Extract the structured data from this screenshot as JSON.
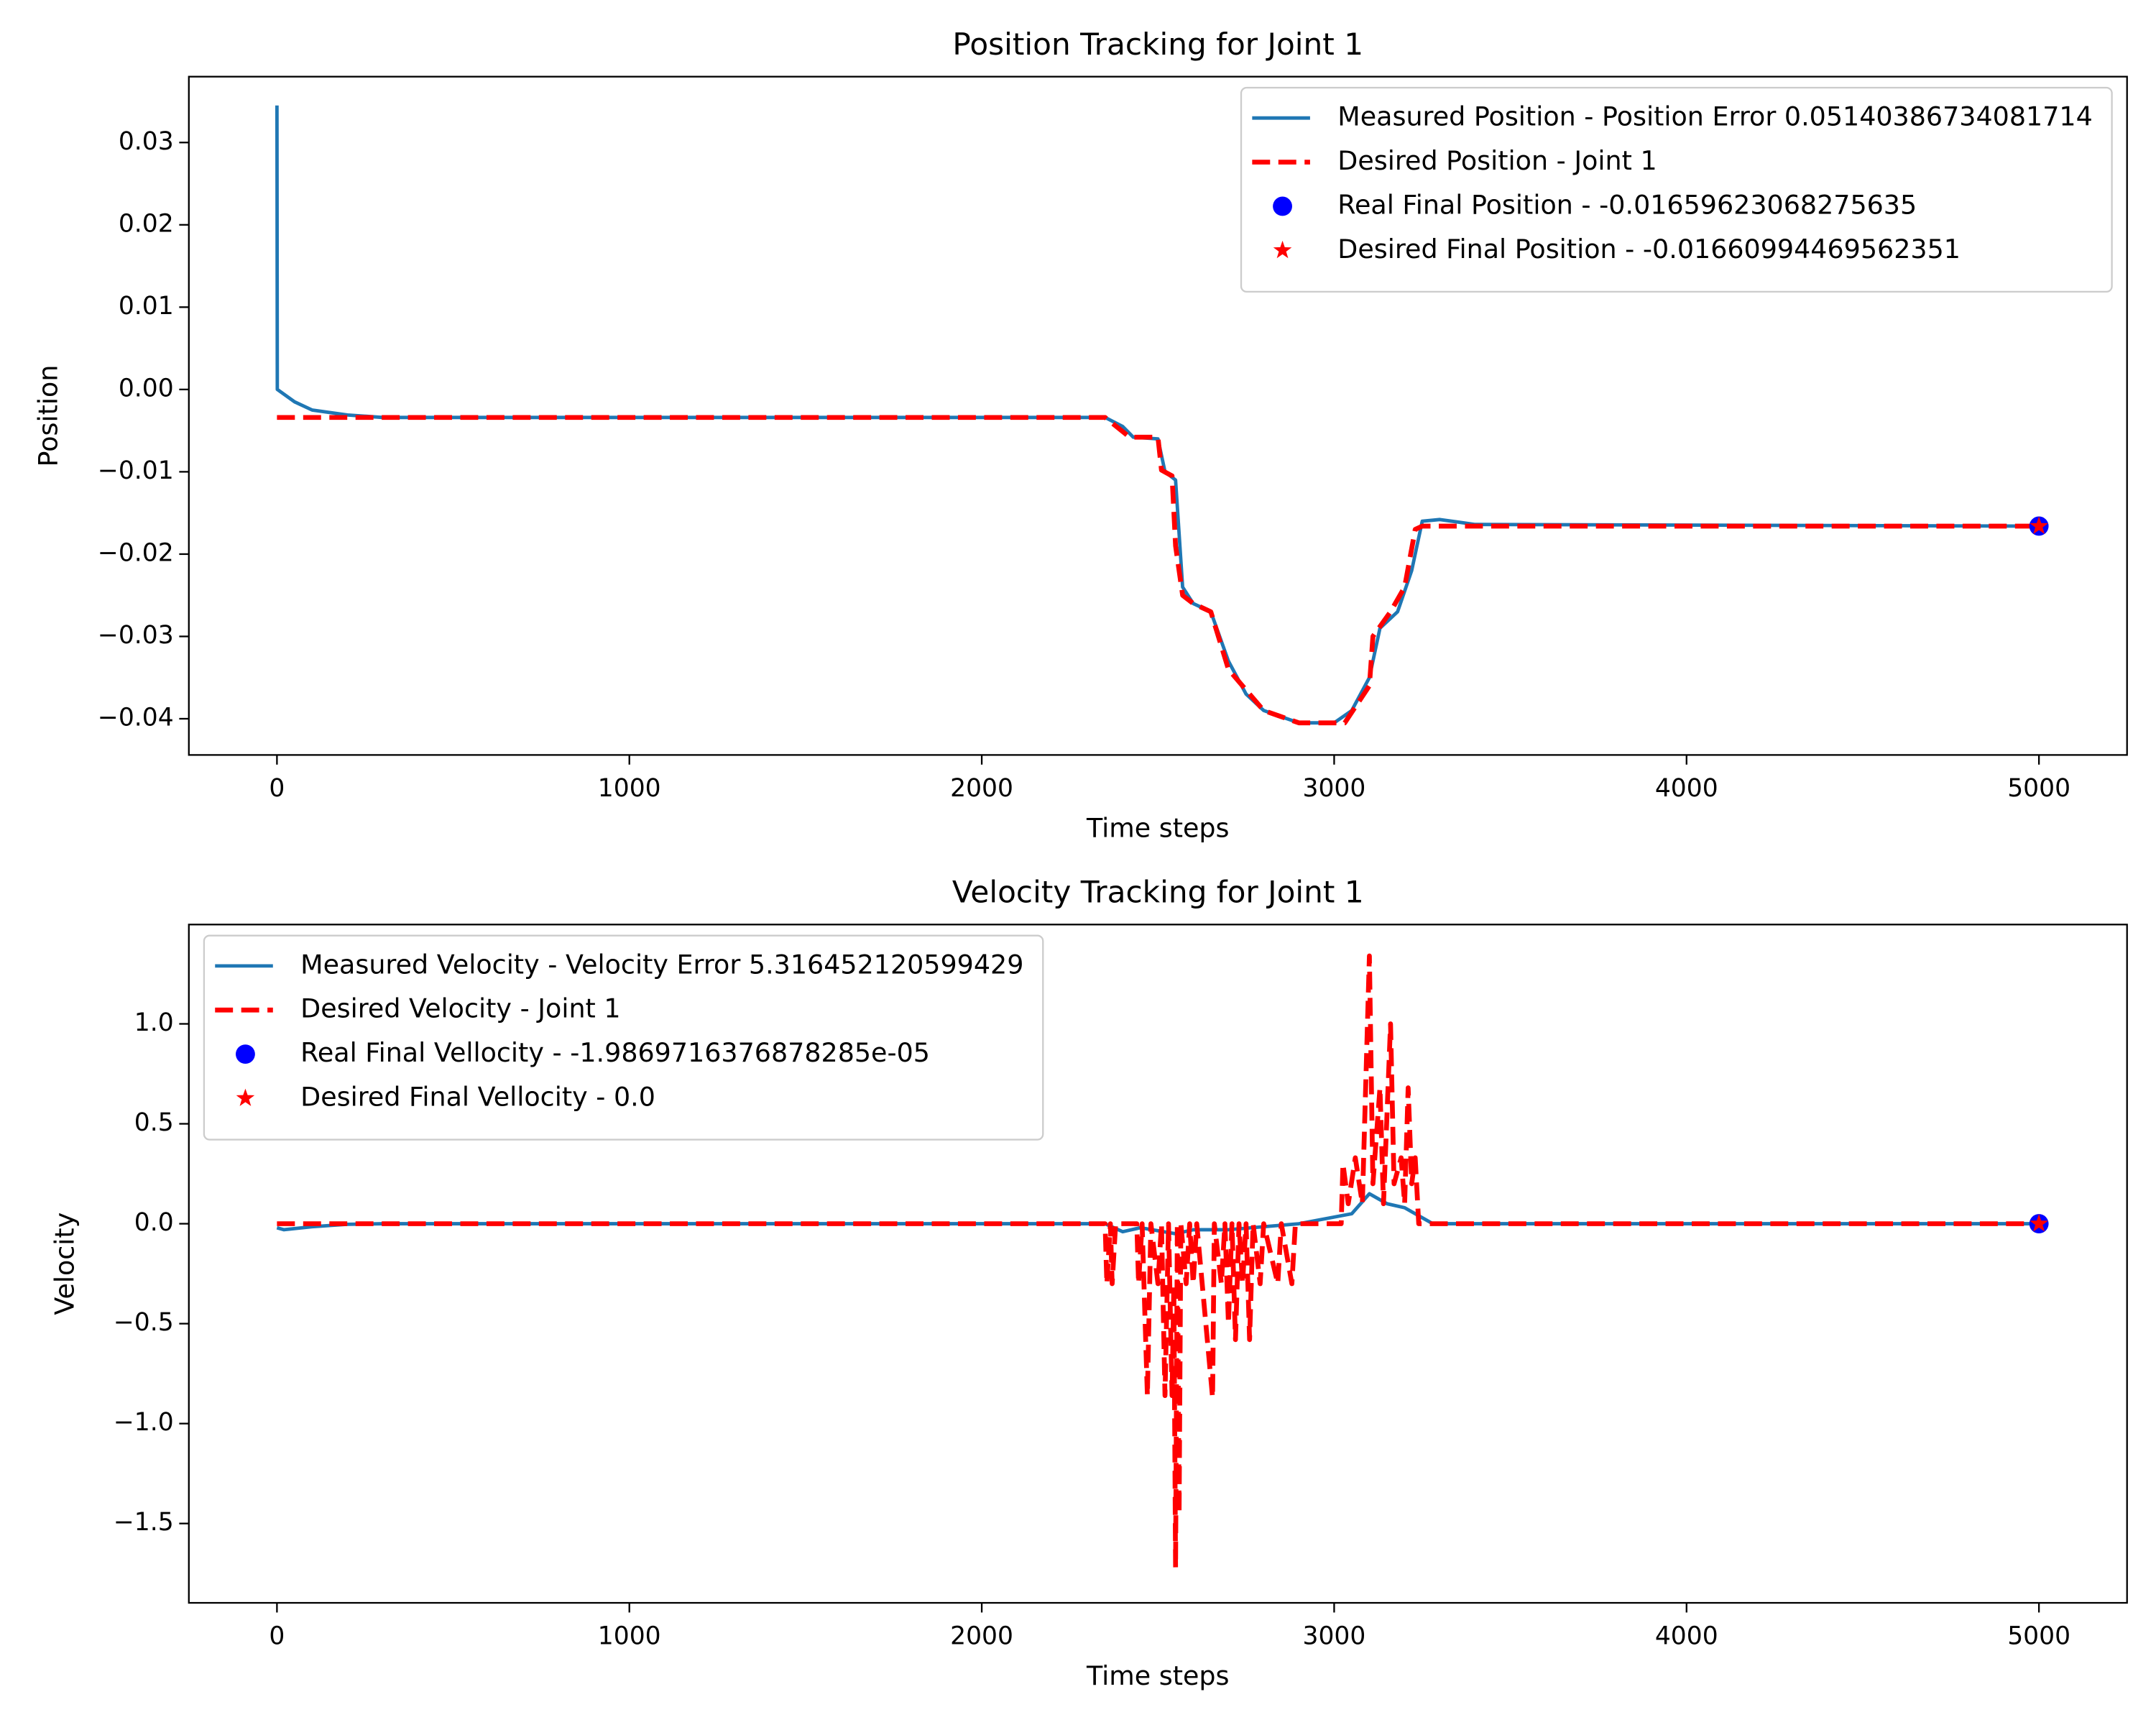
{
  "chart_data": [
    {
      "type": "line",
      "title": "Position Tracking for Joint 1",
      "xlabel": "Time steps",
      "ylabel": "Position",
      "xlim": [
        -250,
        5250
      ],
      "ylim": [
        -0.0444,
        0.038
      ],
      "xticks": [
        0,
        1000,
        2000,
        3000,
        4000,
        5000
      ],
      "yticks": [
        {
          "value": -0.04,
          "label": "−0.04"
        },
        {
          "value": -0.03,
          "label": "−0.03"
        },
        {
          "value": -0.02,
          "label": "−0.02"
        },
        {
          "value": -0.01,
          "label": "−0.01"
        },
        {
          "value": 0,
          "label": "0.00"
        },
        0.01,
        0.02,
        0.03
      ],
      "legend": "upper right",
      "grid": false,
      "series": [
        {
          "name": "Measured Position - Position Error 0.05140386734081714",
          "color": "#1f77b4",
          "style": "solid",
          "x": [
            0,
            1,
            50,
            100,
            200,
            300,
            2350,
            2400,
            2430,
            2500,
            2520,
            2550,
            2570,
            2600,
            2650,
            2700,
            2750,
            2800,
            2900,
            3000,
            3050,
            3100,
            3130,
            3180,
            3220,
            3250,
            3300,
            3400,
            5000
          ],
          "values": [
            0.0345,
            0.0,
            -0.0015,
            -0.0025,
            -0.0031,
            -0.0034,
            -0.0034,
            -0.0045,
            -0.0058,
            -0.006,
            -0.01,
            -0.011,
            -0.024,
            -0.026,
            -0.027,
            -0.033,
            -0.037,
            -0.039,
            -0.0405,
            -0.0405,
            -0.039,
            -0.035,
            -0.029,
            -0.027,
            -0.022,
            -0.016,
            -0.0158,
            -0.0164,
            -0.0166
          ]
        },
        {
          "name": "Desired Position - Joint 1",
          "color": "red",
          "style": "dashed",
          "x": [
            0,
            2350,
            2420,
            2500,
            2510,
            2540,
            2550,
            2570,
            2600,
            2650,
            2700,
            2800,
            2900,
            3030,
            3100,
            3110,
            3160,
            3200,
            3230,
            3250,
            5000
          ],
          "values": [
            -0.0034,
            -0.0034,
            -0.0058,
            -0.0058,
            -0.0098,
            -0.0105,
            -0.019,
            -0.025,
            -0.026,
            -0.027,
            -0.034,
            -0.039,
            -0.0405,
            -0.0405,
            -0.036,
            -0.03,
            -0.027,
            -0.024,
            -0.017,
            -0.0166,
            -0.0166
          ]
        },
        {
          "name": "Real Final Position - -0.01659623068275635",
          "color": "blue",
          "style": "circle",
          "x": [
            5000
          ],
          "values": [
            -0.01659623068275635
          ]
        },
        {
          "name": "Desired Final Position - -0.01660994469562351",
          "color": "red",
          "style": "star",
          "x": [
            5000
          ],
          "values": [
            -0.01660994469562351
          ]
        }
      ]
    },
    {
      "type": "line",
      "title": "Velocity Tracking for Joint 1",
      "xlabel": "Time steps",
      "ylabel": "Velocity",
      "xlim": [
        -250,
        5250
      ],
      "ylim": [
        -1.897,
        1.497
      ],
      "xticks": [
        0,
        1000,
        2000,
        3000,
        4000,
        5000
      ],
      "yticks": [
        {
          "value": -1.5,
          "label": "−1.5"
        },
        {
          "value": -1,
          "label": "−1.0"
        },
        {
          "value": -0.5,
          "label": "−0.5"
        },
        {
          "value": 0,
          "label": "0.0"
        },
        0.5,
        {
          "value": 1,
          "label": "1.0"
        }
      ],
      "legend": "upper left",
      "grid": false,
      "series": [
        {
          "name": "Measured Velocity - Velocity Error 5.316452120599429",
          "color": "#1f77b4",
          "style": "solid",
          "x": [
            0,
            20,
            100,
            200,
            300,
            2350,
            2400,
            2450,
            2550,
            2600,
            2700,
            2900,
            3050,
            3100,
            3150,
            3200,
            3250,
            3280,
            5000
          ],
          "values": [
            -0.02,
            -0.03,
            -0.015,
            -0.003,
            0,
            0,
            -0.04,
            -0.02,
            -0.05,
            -0.03,
            -0.03,
            0,
            0.05,
            0.15,
            0.1,
            0.08,
            0.03,
            0,
            0
          ]
        },
        {
          "name": "Desired Velocity - Joint 1",
          "color": "red",
          "style": "dashed",
          "x": [
            0,
            2350,
            2355,
            2365,
            2370,
            2380,
            2440,
            2445,
            2455,
            2470,
            2480,
            2500,
            2510,
            2520,
            2530,
            2540,
            2545,
            2550,
            2555,
            2560,
            2565,
            2580,
            2590,
            2600,
            2610,
            2655,
            2660,
            2680,
            2690,
            2700,
            2710,
            2720,
            2730,
            2740,
            2750,
            2760,
            2770,
            2790,
            2800,
            2840,
            2850,
            2880,
            2890,
            3020,
            3025,
            3040,
            3060,
            3080,
            3100,
            3110,
            3130,
            3140,
            3160,
            3170,
            3190,
            3200,
            3210,
            3220,
            3230,
            3240,
            5000
          ],
          "values": [
            0,
            0,
            -0.3,
            0,
            -0.3,
            0,
            0,
            -0.3,
            0,
            -0.86,
            0,
            -0.3,
            0,
            -0.86,
            0,
            -0.86,
            -0.3,
            -1.72,
            0,
            -1.45,
            0,
            -0.3,
            0,
            -0.3,
            0,
            -0.87,
            0,
            -0.3,
            0,
            -0.5,
            0,
            -0.58,
            0,
            -0.3,
            0,
            -0.58,
            0,
            -0.3,
            0,
            -0.3,
            0,
            -0.3,
            0,
            0,
            0.3,
            0.1,
            0.33,
            0.1,
            1.34,
            0.2,
            0.68,
            0.1,
            1.0,
            0.2,
            0.33,
            0.1,
            0.68,
            0.2,
            0.33,
            0,
            0
          ]
        },
        {
          "name": "Real Final Vellocity - -1.9869716376878285e-05",
          "color": "blue",
          "style": "circle",
          "x": [
            5000
          ],
          "values": [
            -1.9869716376878285e-05
          ]
        },
        {
          "name": "Desired Final Vellocity - 0.0",
          "color": "red",
          "style": "star",
          "x": [
            5000
          ],
          "values": [
            0.0
          ]
        }
      ]
    }
  ]
}
